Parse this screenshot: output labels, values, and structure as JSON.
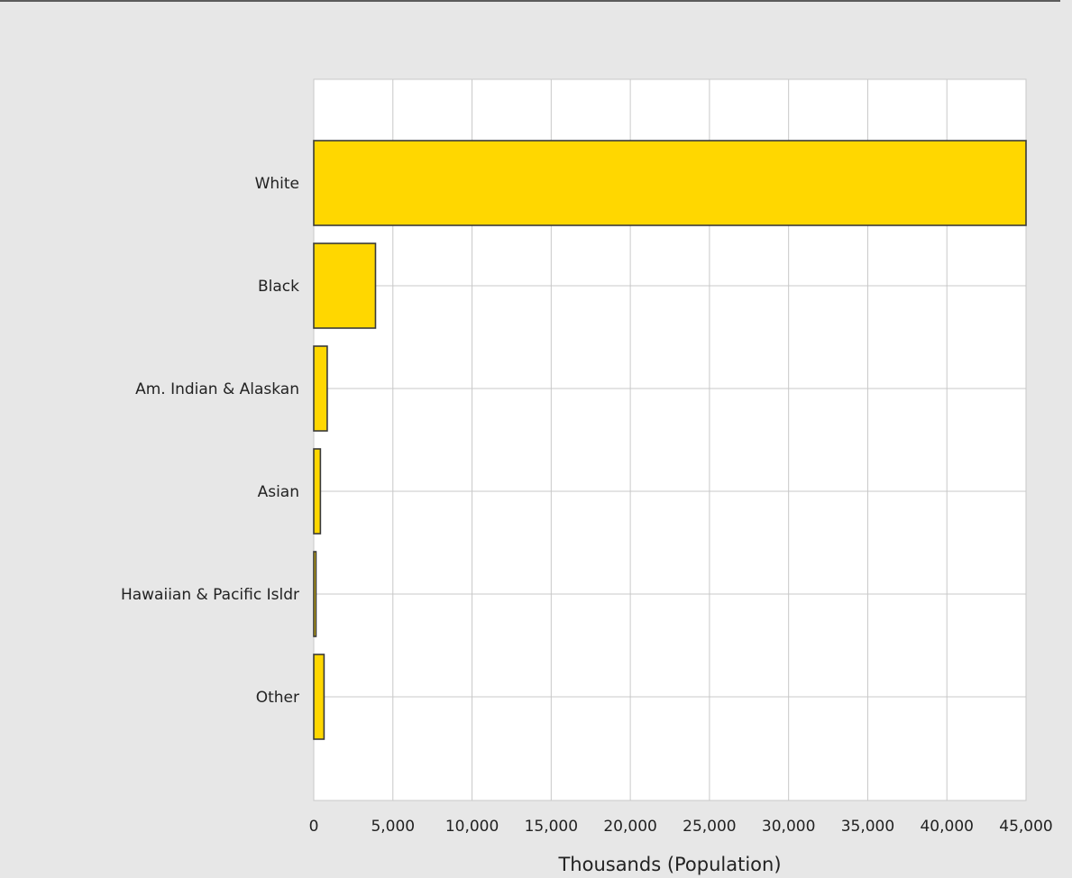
{
  "chart_data": {
    "type": "bar",
    "orientation": "horizontal",
    "title": "",
    "xlabel": "Thousands (Population)",
    "ylabel": "",
    "categories": [
      "White",
      "Black",
      "Am. Indian & Alaskan",
      "Asian",
      "Hawaiian & Pacific Isldr",
      "Other"
    ],
    "values": [
      45000,
      3900,
      850,
      420,
      140,
      650
    ],
    "xlim": [
      0,
      45000
    ],
    "xticks": [
      0,
      5000,
      10000,
      15000,
      20000,
      25000,
      30000,
      35000,
      40000,
      45000
    ],
    "xtick_labels": [
      "0",
      "5,000",
      "10,000",
      "15,000",
      "20,000",
      "25,000",
      "30,000",
      "35,000",
      "40,000",
      "45,000"
    ],
    "grid": true,
    "legend": "none",
    "colors": {
      "bar_fill": "#FFD700",
      "bar_stroke": "#3a3a3a",
      "plot_background": "#ffffff",
      "page_background": "#e7e7e7",
      "grid": "#c8c8c8",
      "text": "#222222"
    }
  }
}
